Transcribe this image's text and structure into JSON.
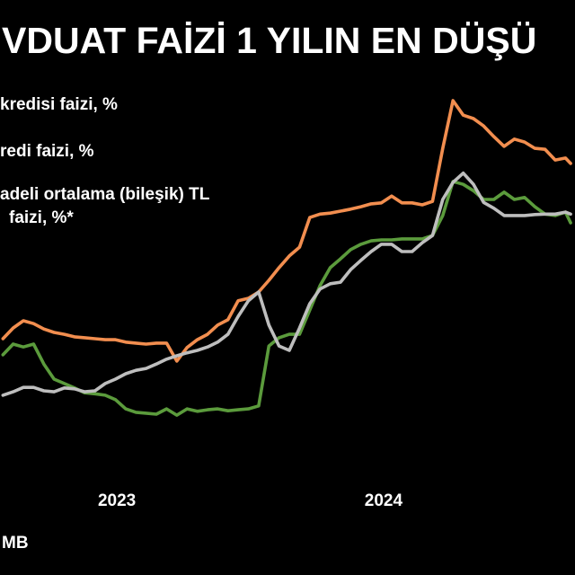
{
  "colors": {
    "background": "#000000",
    "text": "#FFFFFF"
  },
  "chart_data": {
    "type": "line",
    "title": "VDUAT FAİZİ 1 YILIN EN DÜŞÜ",
    "xlabel": "",
    "ylabel": "",
    "x_tick_labels": [
      "2023",
      "2024"
    ],
    "xlim": [
      "2022-07-25",
      "2024-09-19"
    ],
    "ylim": [
      0,
      100
    ],
    "grid": false,
    "legend": {
      "placement": "top-left",
      "entries": [
        {
          "lines": [
            "kredisi faizi, %"
          ]
        },
        {
          "lines": [
            "redi faizi, %"
          ]
        },
        {
          "lines": [
            "adeli ortalama (bileşik) TL",
            "faizi, %*"
          ]
        }
      ]
    },
    "source": "MB",
    "x": [
      "2022-07-29",
      "2022-08-12",
      "2022-08-26",
      "2022-09-09",
      "2022-09-23",
      "2022-10-07",
      "2022-10-21",
      "2022-11-04",
      "2022-11-18",
      "2022-12-02",
      "2022-12-16",
      "2022-12-30",
      "2023-01-13",
      "2023-01-27",
      "2023-02-10",
      "2023-02-24",
      "2023-03-10",
      "2023-03-24",
      "2023-04-07",
      "2023-04-21",
      "2023-05-05",
      "2023-05-19",
      "2023-06-02",
      "2023-06-16",
      "2023-06-30",
      "2023-07-14",
      "2023-07-28",
      "2023-08-11",
      "2023-08-25",
      "2023-09-08",
      "2023-09-22",
      "2023-10-06",
      "2023-10-20",
      "2023-11-03",
      "2023-11-17",
      "2023-12-01",
      "2023-12-15",
      "2023-12-29",
      "2024-01-12",
      "2024-01-26",
      "2024-02-09",
      "2024-02-23",
      "2024-03-08",
      "2024-03-22",
      "2024-04-05",
      "2024-04-19",
      "2024-05-03",
      "2024-05-17",
      "2024-05-31",
      "2024-06-14",
      "2024-06-28",
      "2024-07-12",
      "2024-07-26",
      "2024-08-09",
      "2024-08-23",
      "2024-09-06",
      "2024-09-13"
    ],
    "series": [
      {
        "color": "#F28E4F",
        "values": [
          32.1,
          34.3,
          35.8,
          35.2,
          34.1,
          33.4,
          33.0,
          32.5,
          32.3,
          32.1,
          31.9,
          31.9,
          31.4,
          31.2,
          31.0,
          31.2,
          31.2,
          27.5,
          30.3,
          31.9,
          33.0,
          34.9,
          36.0,
          39.9,
          40.4,
          41.7,
          44.1,
          46.7,
          49.1,
          50.9,
          57.0,
          57.7,
          57.9,
          58.3,
          58.7,
          59.2,
          59.8,
          60.0,
          61.4,
          60.0,
          60.0,
          59.6,
          60.3,
          71.2,
          81.0,
          78.0,
          77.3,
          75.8,
          73.6,
          71.6,
          73.1,
          72.5,
          71.2,
          71.0,
          68.8,
          69.2,
          68.1
        ]
      },
      {
        "color": "#5B9B3C",
        "values": [
          28.8,
          31.0,
          30.4,
          31.0,
          26.9,
          23.8,
          22.9,
          22.0,
          21.0,
          20.8,
          20.5,
          19.6,
          17.7,
          17.0,
          16.8,
          16.6,
          17.7,
          16.4,
          17.7,
          17.2,
          17.5,
          17.7,
          17.3,
          17.5,
          17.7,
          18.3,
          30.6,
          32.3,
          33.0,
          33.0,
          38.0,
          43.0,
          46.7,
          48.5,
          50.4,
          51.5,
          52.2,
          52.4,
          52.4,
          52.6,
          52.6,
          52.6,
          53.3,
          57.4,
          64.4,
          63.8,
          62.5,
          60.7,
          60.7,
          62.2,
          60.7,
          61.1,
          59.2,
          57.7,
          57.4,
          58.1,
          55.9
        ]
      },
      {
        "color": "#BEBEBE",
        "values": [
          20.5,
          21.2,
          22.1,
          22.1,
          21.4,
          21.2,
          22.0,
          21.8,
          21.2,
          21.4,
          22.9,
          23.8,
          24.9,
          25.6,
          26.0,
          26.9,
          27.9,
          28.6,
          29.2,
          29.7,
          30.4,
          31.4,
          33.0,
          36.7,
          39.9,
          41.7,
          34.9,
          30.6,
          29.7,
          34.3,
          39.3,
          42.3,
          43.4,
          43.7,
          46.3,
          48.2,
          50.0,
          51.5,
          51.5,
          50.0,
          50.0,
          51.8,
          53.3,
          60.7,
          64.2,
          66.1,
          63.8,
          60.1,
          58.9,
          57.4,
          57.4,
          57.4,
          57.6,
          57.7,
          57.7,
          58.1,
          57.7
        ]
      }
    ]
  }
}
